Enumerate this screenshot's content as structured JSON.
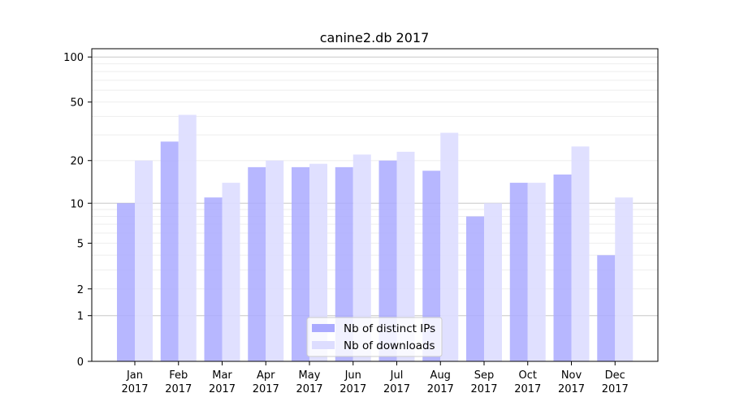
{
  "chart_data": {
    "type": "bar",
    "title": "canine2.db 2017",
    "xlabel": "",
    "ylabel": "",
    "yscale": "log(1+y)",
    "ylim": [
      0,
      110
    ],
    "yticks": [
      0,
      1,
      2,
      5,
      10,
      20,
      50,
      100
    ],
    "grid": true,
    "legend_position": "bottom-center",
    "categories": [
      "Jan\n2017",
      "Feb\n2017",
      "Mar\n2017",
      "Apr\n2017",
      "May\n2017",
      "Jun\n2017",
      "Jul\n2017",
      "Aug\n2017",
      "Sep\n2017",
      "Oct\n2017",
      "Nov\n2017",
      "Dec\n2017"
    ],
    "series": [
      {
        "name": "Nb of distinct IPs",
        "color": "#aaaaff",
        "values": [
          10,
          27,
          11,
          18,
          18,
          18,
          20,
          17,
          8,
          14,
          16,
          4
        ]
      },
      {
        "name": "Nb of downloads",
        "color": "#ddddff",
        "values": [
          20,
          41,
          14,
          20,
          19,
          22,
          23,
          31,
          10,
          14,
          25,
          11
        ]
      }
    ]
  }
}
